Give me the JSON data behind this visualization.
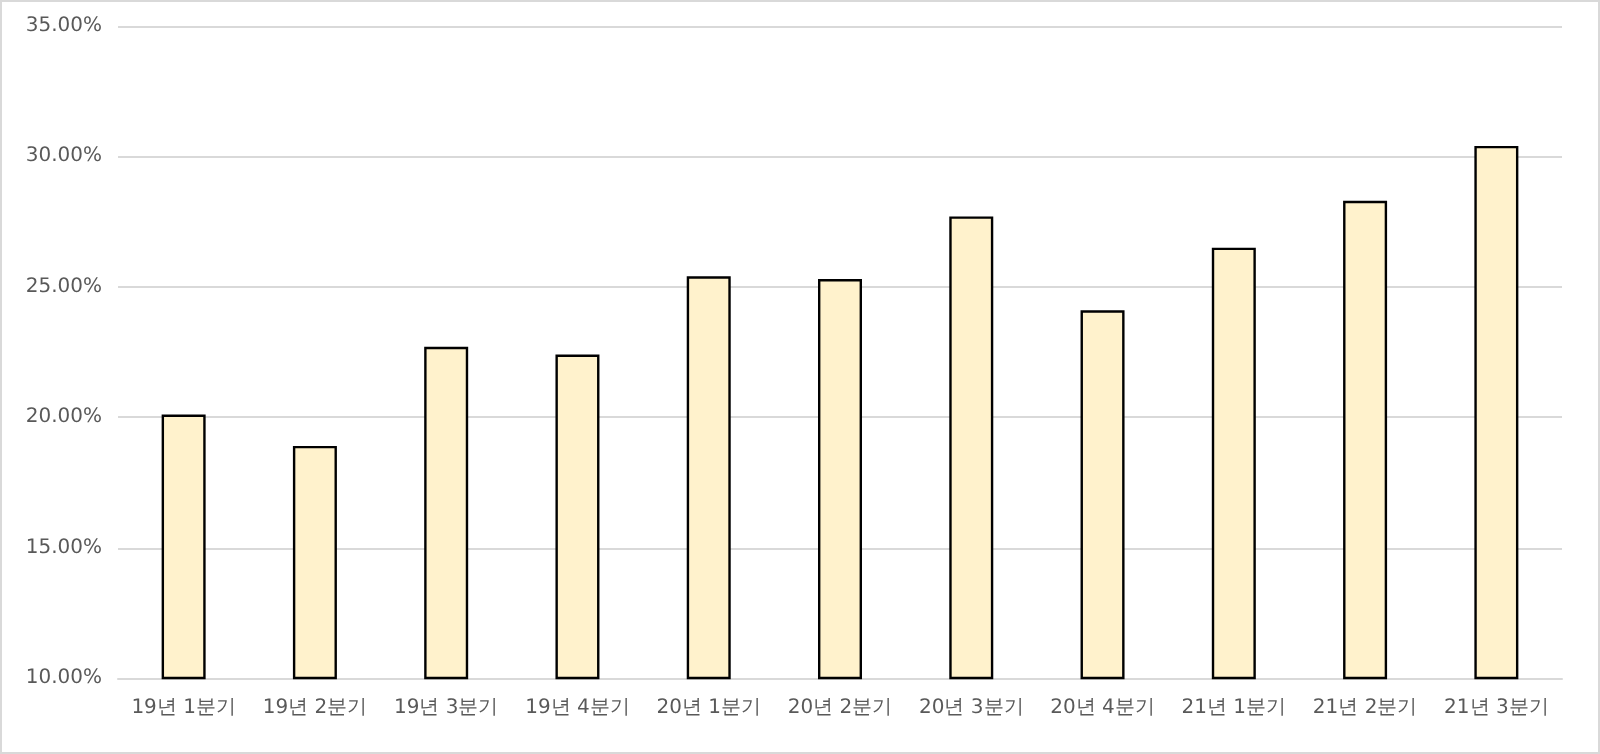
{
  "chart_data": {
    "type": "bar",
    "categories": [
      "19년 1분기",
      "19년 2분기",
      "19년 3분기",
      "19년 4분기",
      "20년 1분기",
      "20년 2분기",
      "20년 3분기",
      "20년 4분기",
      "21년 1분기",
      "21년 2분기",
      "21년 3분기"
    ],
    "values": [
      20.1,
      18.9,
      22.7,
      22.4,
      25.4,
      25.3,
      27.7,
      24.1,
      26.5,
      28.3,
      30.4
    ],
    "color": "#fff2cc",
    "ylim": [
      10,
      35
    ],
    "yticks": [
      {
        "value": 10,
        "label": "10.00%"
      },
      {
        "value": 15,
        "label": "15.00%"
      },
      {
        "value": 20,
        "label": "20.00%"
      },
      {
        "value": 25,
        "label": "25.00%"
      },
      {
        "value": 30,
        "label": "30.00%"
      },
      {
        "value": 35,
        "label": "35.00%"
      }
    ],
    "grid": "y"
  }
}
